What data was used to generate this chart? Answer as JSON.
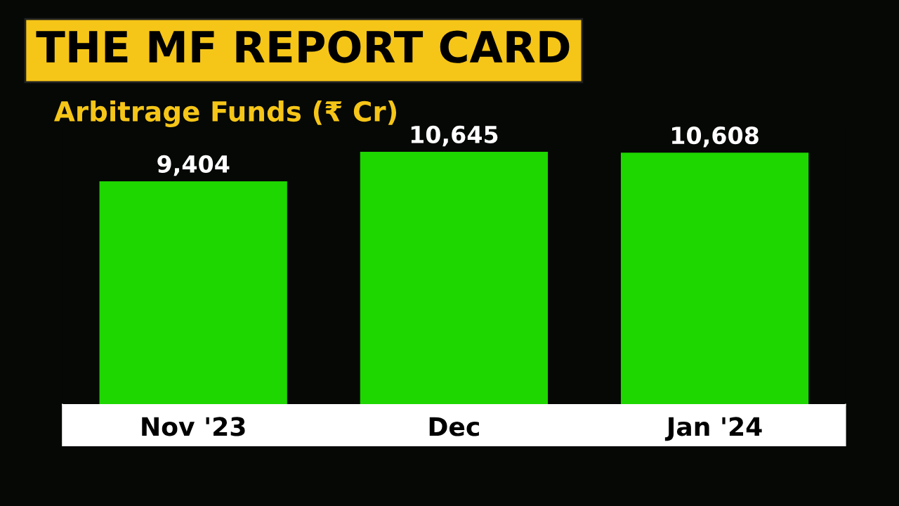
{
  "chart_data": {
    "type": "bar",
    "title": "THE MF REPORT CARD",
    "subtitle": "Arbitrage Funds (₹ Cr)",
    "categories": [
      "Nov '23",
      "Dec",
      "Jan '24"
    ],
    "values": [
      9404,
      10645,
      10608
    ],
    "value_labels": [
      "9,404",
      "10,645",
      "10,608"
    ],
    "color": "#1ed600",
    "grid": false
  }
}
